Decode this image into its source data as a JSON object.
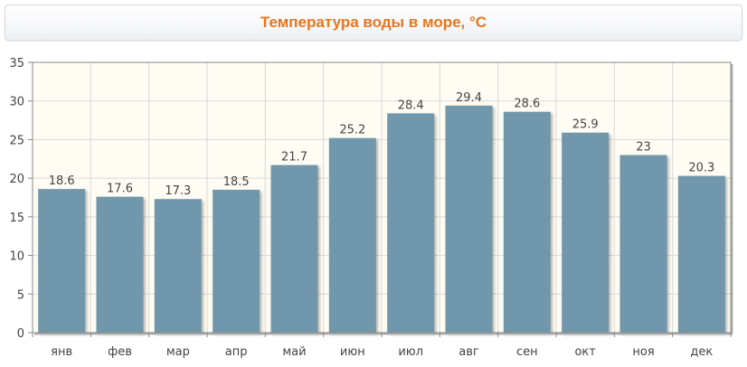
{
  "chart_data": {
    "type": "bar",
    "title": "Температура воды в море, °C",
    "categories": [
      "янв",
      "фев",
      "мар",
      "апр",
      "май",
      "июн",
      "июл",
      "авг",
      "сен",
      "окт",
      "ноя",
      "дек"
    ],
    "values": [
      18.6,
      17.6,
      17.3,
      18.5,
      21.7,
      25.2,
      28.4,
      29.4,
      28.6,
      25.9,
      23,
      20.3
    ],
    "data_labels": [
      "18.6",
      "17.6",
      "17.3",
      "18.5",
      "21.7",
      "25.2",
      "28.4",
      "29.4",
      "28.6",
      "25.9",
      "23",
      "20.3"
    ],
    "y_ticks": [
      0,
      5,
      10,
      15,
      20,
      25,
      30,
      35
    ],
    "ylim": [
      0,
      35
    ],
    "xlabel": "",
    "ylabel": "",
    "grid": true,
    "legend": "none",
    "colors": {
      "bar": "#6f97ab",
      "title": "#e8761e",
      "plot_background": "#fffdf3",
      "grid": "#d8d8d8"
    }
  }
}
